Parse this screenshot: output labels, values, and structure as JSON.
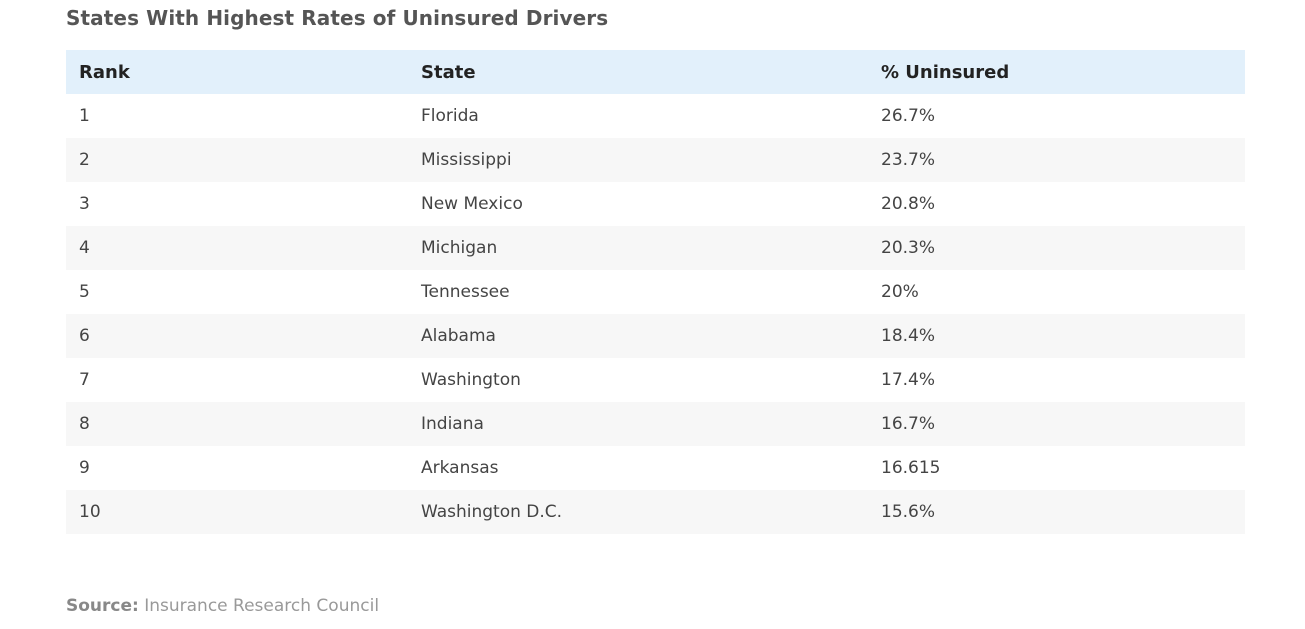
{
  "title": "States With Highest Rates of Uninsured Drivers",
  "table": {
    "headers": {
      "rank": "Rank",
      "state": "State",
      "pct": "% Uninsured"
    },
    "rows": [
      {
        "rank": "1",
        "state": "Florida",
        "pct": "26.7%"
      },
      {
        "rank": "2",
        "state": "Mississippi",
        "pct": "23.7%"
      },
      {
        "rank": "3",
        "state": "New Mexico",
        "pct": "20.8%"
      },
      {
        "rank": "4",
        "state": "Michigan",
        "pct": "20.3%"
      },
      {
        "rank": "5",
        "state": "Tennessee",
        "pct": "20%"
      },
      {
        "rank": "6",
        "state": "Alabama",
        "pct": "18.4%"
      },
      {
        "rank": "7",
        "state": "Washington",
        "pct": "17.4%"
      },
      {
        "rank": "8",
        "state": "Indiana",
        "pct": "16.7%"
      },
      {
        "rank": "9",
        "state": "Arkansas",
        "pct": "16.615"
      },
      {
        "rank": "10",
        "state": "Washington D.C.",
        "pct": "15.6%"
      }
    ]
  },
  "source": {
    "label": "Source:",
    "text": "Insurance Research Council"
  }
}
